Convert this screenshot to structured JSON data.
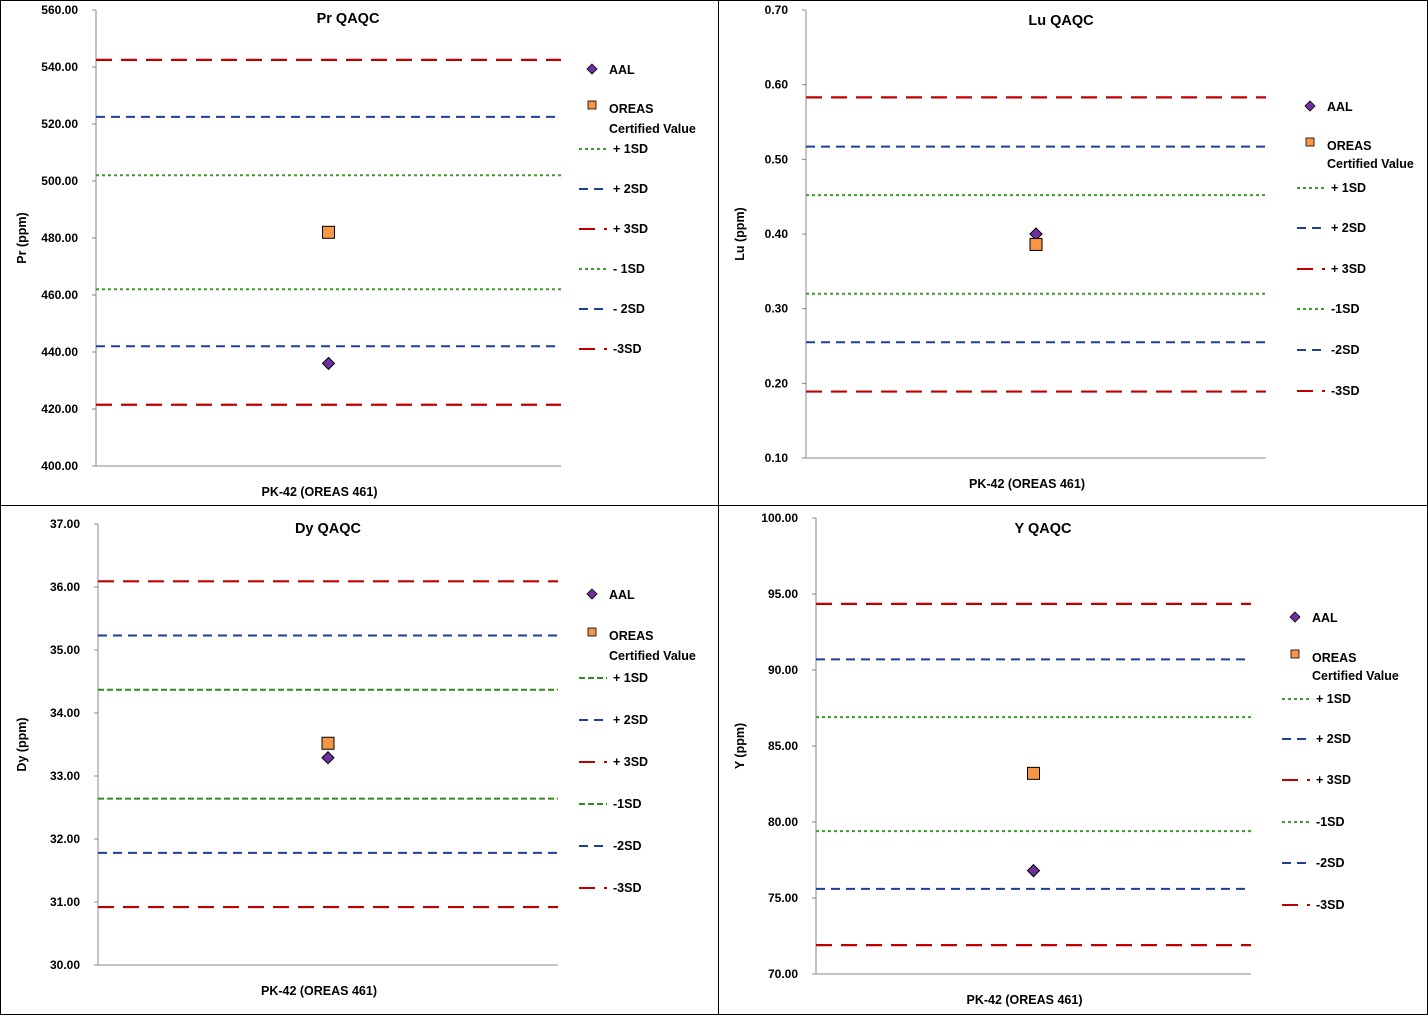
{
  "chart_data": [
    {
      "type": "scatter",
      "title": "Pr QAQC",
      "xlabel": "PK-42 (OREAS 461)",
      "ylabel": "Pr (ppm)",
      "ylim": [
        400,
        560
      ],
      "yticks": [
        "400.00",
        "420.00",
        "440.00",
        "460.00",
        "480.00",
        "500.00",
        "520.00",
        "540.00",
        "560.00"
      ],
      "series": [
        {
          "name": "AAL",
          "values": [
            436
          ],
          "marker": "diamond",
          "color": "#7030A0"
        },
        {
          "name": "OREAS Certified Value",
          "values": [
            482
          ],
          "marker": "square",
          "color": "#F79646"
        }
      ],
      "lines": [
        {
          "name": "+ 1SD",
          "value": 502,
          "style": "dotted",
          "color": "#3E9B2F"
        },
        {
          "name": "+ 2SD",
          "value": 522.5,
          "style": "dashed",
          "color": "#1F3E99"
        },
        {
          "name": "+ 3SD",
          "value": 542.5,
          "style": "longdash",
          "color": "#C00000"
        },
        {
          "name": "- 1SD",
          "value": 462,
          "style": "dotted",
          "color": "#3E9B2F"
        },
        {
          "name": "- 2SD",
          "value": 442,
          "style": "dashed",
          "color": "#1F3E99"
        },
        {
          "name": "-3SD",
          "value": 421.5,
          "style": "longdash",
          "color": "#C00000"
        }
      ],
      "legend_labels": [
        "AAL",
        "OREAS",
        "Certified Value",
        "+ 1SD",
        "+ 2SD",
        "+ 3SD",
        "- 1SD",
        "- 2SD",
        "-3SD"
      ],
      "legend": "right"
    },
    {
      "type": "scatter",
      "title": "Lu QAQC",
      "xlabel": "PK-42 (OREAS 461)",
      "ylabel": "Lu (ppm)",
      "ylim": [
        0.1,
        0.7
      ],
      "yticks": [
        "0.10",
        "0.20",
        "0.30",
        "0.40",
        "0.50",
        "0.60",
        "0.70"
      ],
      "series": [
        {
          "name": "AAL",
          "values": [
            0.4
          ],
          "marker": "diamond",
          "color": "#7030A0"
        },
        {
          "name": "OREAS Certified Value",
          "values": [
            0.386
          ],
          "marker": "square",
          "color": "#F79646"
        }
      ],
      "lines": [
        {
          "name": "+ 1SD",
          "value": 0.452,
          "style": "dotted",
          "color": "#3E9B2F"
        },
        {
          "name": "+ 2SD",
          "value": 0.517,
          "style": "dashed",
          "color": "#1F3E99"
        },
        {
          "name": "+ 3SD",
          "value": 0.583,
          "style": "longdash",
          "color": "#C00000"
        },
        {
          "name": "-1SD",
          "value": 0.32,
          "style": "dotted",
          "color": "#3E9B2F"
        },
        {
          "name": "-2SD",
          "value": 0.255,
          "style": "dashed",
          "color": "#1F3E99"
        },
        {
          "name": "-3SD",
          "value": 0.189,
          "style": "longdash",
          "color": "#C00000"
        }
      ],
      "legend_labels": [
        "AAL",
        "OREAS",
        "Certified Value",
        "+ 1SD",
        "+ 2SD",
        "+ 3SD",
        "-1SD",
        "-2SD",
        "-3SD"
      ],
      "legend": "right"
    },
    {
      "type": "scatter",
      "title": "Dy QAQC",
      "xlabel": "PK-42 (OREAS 461)",
      "ylabel": "Dy (ppm)",
      "ylim": [
        30,
        37
      ],
      "yticks": [
        "30.00",
        "31.00",
        "32.00",
        "33.00",
        "34.00",
        "35.00",
        "36.00",
        "37.00"
      ],
      "series": [
        {
          "name": "AAL",
          "values": [
            33.29
          ],
          "marker": "diamond",
          "color": "#7030A0"
        },
        {
          "name": "OREAS Certified Value",
          "values": [
            33.52
          ],
          "marker": "square",
          "color": "#F79646"
        }
      ],
      "lines": [
        {
          "name": "+ 1SD",
          "value": 34.37,
          "style": "shortdash",
          "color": "#2E8B1E"
        },
        {
          "name": "+ 2SD",
          "value": 35.23,
          "style": "dashed",
          "color": "#1F3E99"
        },
        {
          "name": "+ 3SD",
          "value": 36.09,
          "style": "longdash",
          "color": "#C00000"
        },
        {
          "name": "-1SD",
          "value": 32.64,
          "style": "shortdash",
          "color": "#2E8B1E"
        },
        {
          "name": "-2SD",
          "value": 31.78,
          "style": "dashed",
          "color": "#1F3E99"
        },
        {
          "name": "-3SD",
          "value": 30.92,
          "style": "longdash",
          "color": "#C00000"
        }
      ],
      "legend_labels": [
        "AAL",
        "OREAS",
        "Certified Value",
        "+ 1SD",
        "+ 2SD",
        "+ 3SD",
        "-1SD",
        "-2SD",
        "-3SD"
      ],
      "legend": "right"
    },
    {
      "type": "scatter",
      "title": "Y QAQC",
      "xlabel": "PK-42 (OREAS 461)",
      "ylabel": "Y (ppm)",
      "ylim": [
        70,
        100
      ],
      "yticks": [
        "70.00",
        "75.00",
        "80.00",
        "85.00",
        "90.00",
        "95.00",
        "100.00"
      ],
      "series": [
        {
          "name": "AAL",
          "values": [
            76.8
          ],
          "marker": "diamond",
          "color": "#7030A0"
        },
        {
          "name": "OREAS Certified Value",
          "values": [
            83.2
          ],
          "marker": "square",
          "color": "#F79646"
        }
      ],
      "lines": [
        {
          "name": "+ 1SD",
          "value": 86.9,
          "style": "dotted",
          "color": "#3E9B2F"
        },
        {
          "name": "+ 2SD",
          "value": 90.7,
          "style": "dashed",
          "color": "#1F3E99"
        },
        {
          "name": "+ 3SD",
          "value": 94.35,
          "style": "longdash",
          "color": "#C00000"
        },
        {
          "name": "-1SD",
          "value": 79.4,
          "style": "dotted",
          "color": "#3E9B2F"
        },
        {
          "name": "-2SD",
          "value": 75.6,
          "style": "dashed",
          "color": "#1F3E99"
        },
        {
          "name": "-3SD",
          "value": 71.9,
          "style": "longdash",
          "color": "#C00000"
        }
      ],
      "legend_labels": [
        "AAL",
        "OREAS",
        "Certified Value",
        "+ 1SD",
        "+ 2SD",
        "+ 3SD",
        "-1SD",
        "-2SD",
        "-3SD"
      ],
      "legend": "right"
    }
  ]
}
